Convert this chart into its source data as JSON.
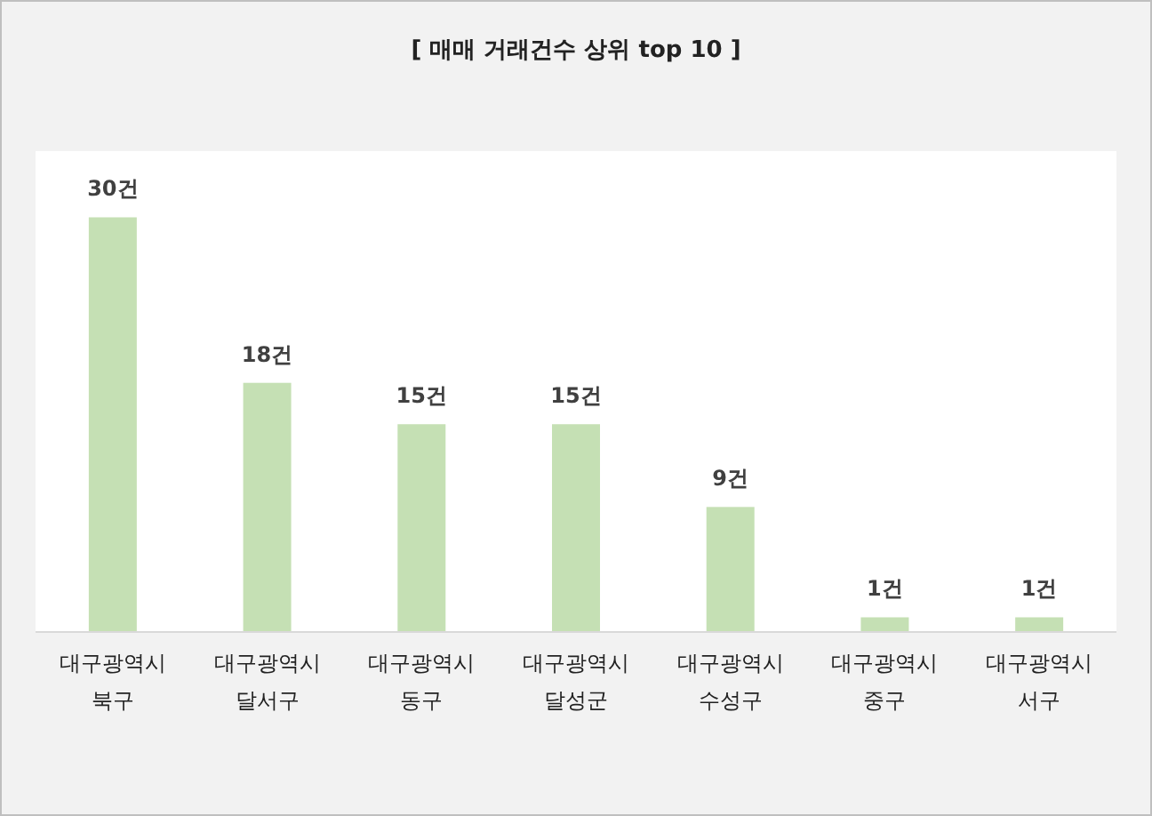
{
  "chart_data": {
    "type": "bar",
    "title": "[ 매매 거래건수 상위 top 10 ]",
    "categories": [
      "대구광역시 북구",
      "대구광역시 달서구",
      "대구광역시 동구",
      "대구광역시 달성군",
      "대구광역시 수성구",
      "대구광역시 중구",
      "대구광역시 서구"
    ],
    "values": [
      30,
      18,
      15,
      15,
      9,
      1,
      1
    ],
    "value_labels": [
      "30건",
      "18건",
      "15건",
      "15건",
      "9건",
      "1건",
      "1건"
    ],
    "color": "#c5e0b4"
  }
}
